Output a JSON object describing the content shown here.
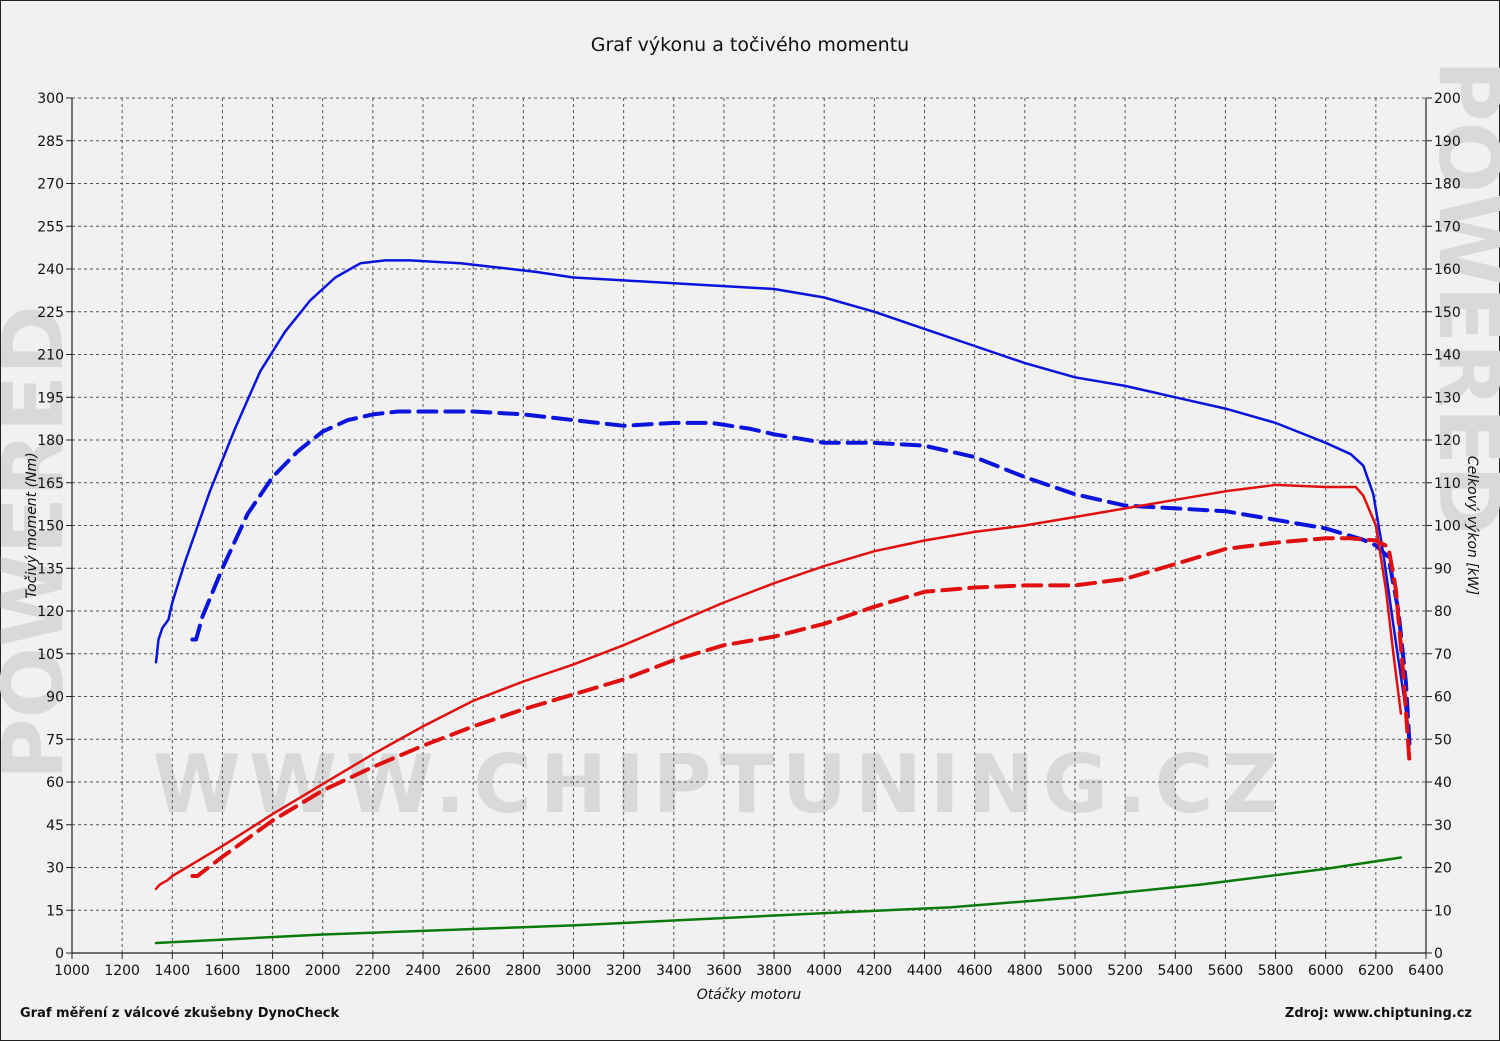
{
  "chart_data": {
    "type": "line",
    "title": "Graf výkonu a točivého momentu",
    "xlabel": "Otáčky motoru",
    "ylabel_left": "Točivý moment (Nm)",
    "ylabel_right": "Celkový výkon [kW]",
    "xlim": [
      1000,
      6400
    ],
    "ylim_left": [
      0,
      300
    ],
    "ylim_right": [
      0,
      200
    ],
    "x_ticks": [
      "1000",
      "1200",
      "1400",
      "1600",
      "1800",
      "2000",
      "2200",
      "2400",
      "2600",
      "2800",
      "3000",
      "3200",
      "3400",
      "3600",
      "3800",
      "4000",
      "4200",
      "4400",
      "4600",
      "4800",
      "5000",
      "5200",
      "5400",
      "5600",
      "5800",
      "6000",
      "6200",
      "6400"
    ],
    "y_left_ticks": [
      "0",
      "15",
      "30",
      "45",
      "60",
      "75",
      "90",
      "105",
      "120",
      "135",
      "150",
      "165",
      "180",
      "195",
      "210",
      "225",
      "240",
      "255",
      "270",
      "285",
      "300"
    ],
    "y_right_ticks": [
      "0",
      "10",
      "20",
      "30",
      "40",
      "50",
      "60",
      "70",
      "80",
      "90",
      "100",
      "110",
      "120",
      "130",
      "140",
      "150",
      "160",
      "170",
      "180",
      "190",
      "200"
    ],
    "grid": true,
    "series": [
      {
        "axis": "left",
        "color": "#0a14dc",
        "style": "solid",
        "points": [
          [
            1335,
            102
          ],
          [
            1345,
            110
          ],
          [
            1360,
            114
          ],
          [
            1385,
            117
          ],
          [
            1400,
            123
          ],
          [
            1450,
            137
          ],
          [
            1550,
            162
          ],
          [
            1650,
            184
          ],
          [
            1750,
            204
          ],
          [
            1850,
            218
          ],
          [
            1950,
            229
          ],
          [
            2050,
            237
          ],
          [
            2150,
            242
          ],
          [
            2250,
            243
          ],
          [
            2350,
            243
          ],
          [
            2450,
            242.5
          ],
          [
            2550,
            242
          ],
          [
            2650,
            241
          ],
          [
            2750,
            240
          ],
          [
            2850,
            239
          ],
          [
            3000,
            237
          ],
          [
            3200,
            236
          ],
          [
            3400,
            235
          ],
          [
            3600,
            234
          ],
          [
            3800,
            233
          ],
          [
            4000,
            230
          ],
          [
            4200,
            225
          ],
          [
            4400,
            219
          ],
          [
            4600,
            213
          ],
          [
            4800,
            207
          ],
          [
            5000,
            202
          ],
          [
            5200,
            199
          ],
          [
            5400,
            195
          ],
          [
            5600,
            191
          ],
          [
            5800,
            186
          ],
          [
            6000,
            179
          ],
          [
            6100,
            175
          ],
          [
            6150,
            171
          ],
          [
            6190,
            161
          ],
          [
            6230,
            140
          ],
          [
            6270,
            115
          ],
          [
            6300,
            97
          ],
          [
            6330,
            79
          ]
        ]
      },
      {
        "axis": "left",
        "color": "#0a14dc",
        "style": "dashed",
        "points": [
          [
            1480,
            110
          ],
          [
            1495,
            110
          ],
          [
            1520,
            118
          ],
          [
            1600,
            135
          ],
          [
            1700,
            154
          ],
          [
            1800,
            167
          ],
          [
            1900,
            176
          ],
          [
            2000,
            183
          ],
          [
            2100,
            187
          ],
          [
            2200,
            189
          ],
          [
            2300,
            190
          ],
          [
            2400,
            190
          ],
          [
            2500,
            190
          ],
          [
            2600,
            190
          ],
          [
            2800,
            189
          ],
          [
            3000,
            187
          ],
          [
            3200,
            185
          ],
          [
            3400,
            186
          ],
          [
            3550,
            186
          ],
          [
            3700,
            184
          ],
          [
            3800,
            182
          ],
          [
            4000,
            179
          ],
          [
            4200,
            179
          ],
          [
            4400,
            178
          ],
          [
            4600,
            174
          ],
          [
            4800,
            167
          ],
          [
            5000,
            161
          ],
          [
            5200,
            157
          ],
          [
            5400,
            156
          ],
          [
            5600,
            155
          ],
          [
            5800,
            152
          ],
          [
            6000,
            149
          ],
          [
            6150,
            145
          ],
          [
            6200,
            143
          ],
          [
            6250,
            139
          ],
          [
            6290,
            120
          ],
          [
            6320,
            95
          ],
          [
            6335,
            72
          ]
        ]
      },
      {
        "axis": "right",
        "color": "#e01010",
        "style": "solid",
        "points": [
          [
            1335,
            15
          ],
          [
            1350,
            16
          ],
          [
            1380,
            17
          ],
          [
            1400,
            18
          ],
          [
            1500,
            21.5
          ],
          [
            1600,
            25
          ],
          [
            1800,
            32.5
          ],
          [
            2000,
            39.5
          ],
          [
            2200,
            46.5
          ],
          [
            2400,
            53
          ],
          [
            2600,
            59
          ],
          [
            2800,
            63.5
          ],
          [
            3000,
            67.5
          ],
          [
            3200,
            72
          ],
          [
            3400,
            77
          ],
          [
            3600,
            82
          ],
          [
            3800,
            86.5
          ],
          [
            4000,
            90.5
          ],
          [
            4200,
            94
          ],
          [
            4400,
            96.5
          ],
          [
            4600,
            98.5
          ],
          [
            4800,
            100
          ],
          [
            5000,
            102
          ],
          [
            5200,
            104
          ],
          [
            5400,
            106
          ],
          [
            5600,
            108
          ],
          [
            5800,
            109.5
          ],
          [
            6000,
            109
          ],
          [
            6120,
            109
          ],
          [
            6150,
            107
          ],
          [
            6200,
            100
          ],
          [
            6240,
            85
          ],
          [
            6270,
            70
          ],
          [
            6300,
            56
          ]
        ]
      },
      {
        "axis": "right",
        "color": "#e01010",
        "style": "dashed",
        "points": [
          [
            1480,
            18
          ],
          [
            1500,
            18
          ],
          [
            1600,
            22.5
          ],
          [
            1800,
            31
          ],
          [
            2000,
            38
          ],
          [
            2200,
            43.5
          ],
          [
            2400,
            48.5
          ],
          [
            2600,
            53
          ],
          [
            2800,
            57
          ],
          [
            3000,
            60.5
          ],
          [
            3200,
            64
          ],
          [
            3400,
            68.5
          ],
          [
            3600,
            72
          ],
          [
            3800,
            74
          ],
          [
            4000,
            77
          ],
          [
            4200,
            81
          ],
          [
            4400,
            84.5
          ],
          [
            4600,
            85.5
          ],
          [
            4800,
            86
          ],
          [
            5000,
            86
          ],
          [
            5200,
            87.5
          ],
          [
            5400,
            91
          ],
          [
            5600,
            94.5
          ],
          [
            5800,
            96
          ],
          [
            6000,
            97
          ],
          [
            6100,
            97
          ],
          [
            6200,
            96.5
          ],
          [
            6250,
            95
          ],
          [
            6280,
            85
          ],
          [
            6310,
            65
          ],
          [
            6335,
            44
          ]
        ]
      },
      {
        "axis": "left",
        "color": "#0b7a0b",
        "style": "solid",
        "points": [
          [
            1335,
            3.5
          ],
          [
            2000,
            6.5
          ],
          [
            3000,
            9.7
          ],
          [
            4000,
            14
          ],
          [
            4500,
            16
          ],
          [
            5000,
            19.5
          ],
          [
            5500,
            24
          ],
          [
            6000,
            29.5
          ],
          [
            6300,
            33.5
          ]
        ]
      }
    ]
  },
  "watermark": {
    "url": "WWW.CHIPTUNING.CZ",
    "side": "POWERED"
  },
  "footer": {
    "left": "Graf měření z válcové zkušebny DynoCheck",
    "right": "Zdroj: www.chiptuning.cz"
  }
}
